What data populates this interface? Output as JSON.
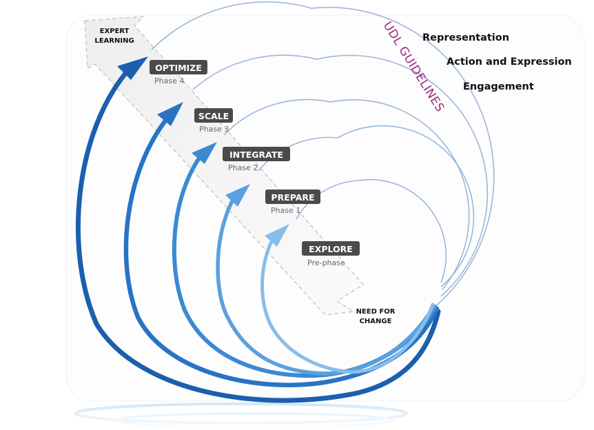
{
  "colors": {
    "arc1": "#1b5fae",
    "arc2": "#2873c4",
    "arc3": "#3c89d3",
    "arc4": "#5aa0df",
    "arc5": "#86bdea",
    "guide": "#9ab6dc",
    "badge": "#4a4a4a",
    "udl": "#9b2a7e",
    "text": "#111111",
    "phase": "#666666"
  },
  "top_label": {
    "line1": "EXPERT",
    "line2": "LEARNING"
  },
  "bottom_label": {
    "line1": "NEED FOR",
    "line2": "CHANGE"
  },
  "udl_title": "UDL GUIDELINES",
  "guidelines": [
    "Representation",
    "Action and Expression",
    "Engagement"
  ],
  "stages": [
    {
      "name": "OPTIMIZE",
      "phase": "Phase 4"
    },
    {
      "name": "SCALE",
      "phase": "Phase 3"
    },
    {
      "name": "INTEGRATE",
      "phase": "Phase 2"
    },
    {
      "name": "PREPARE",
      "phase": "Phase 1"
    },
    {
      "name": "EXPLORE",
      "phase": "Pre-phase"
    }
  ],
  "icons": {
    "arrow_band": "diagonal-arrow-band",
    "arc_arrows": "curved-arrow-icon"
  }
}
